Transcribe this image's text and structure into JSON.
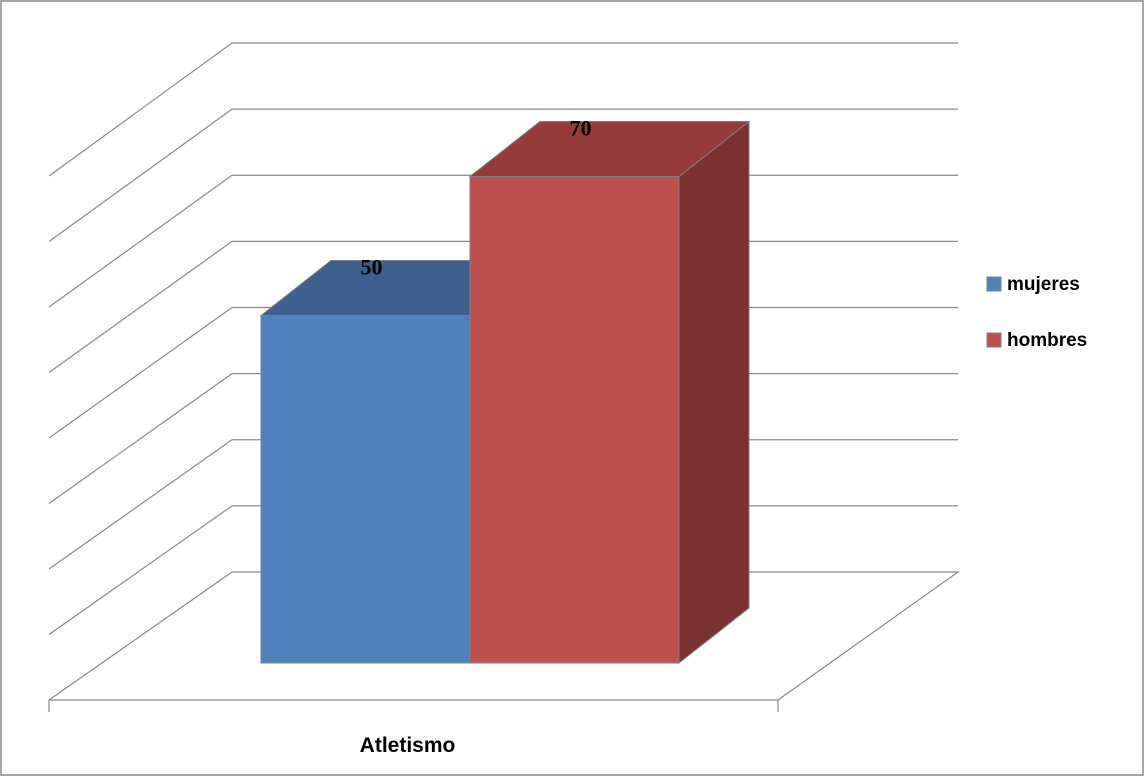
{
  "chart_data": {
    "type": "bar",
    "categories": [
      "Atletismo"
    ],
    "series": [
      {
        "name": "mujeres",
        "values": [
          50
        ],
        "color": "#4F81BD",
        "top_color": "#3C618F",
        "side_color": "#3A5F8C"
      },
      {
        "name": "hombres",
        "values": [
          70
        ],
        "color": "#C0504D",
        "top_color": "#953C3A",
        "side_color": "#7A3230"
      }
    ],
    "ylim": [
      0,
      80
    ],
    "data_labels": true,
    "grid": true,
    "three_d": true,
    "y_tick_labels_shown": false,
    "legend_position": "right",
    "title": "",
    "xlabel": "",
    "ylabel": ""
  }
}
